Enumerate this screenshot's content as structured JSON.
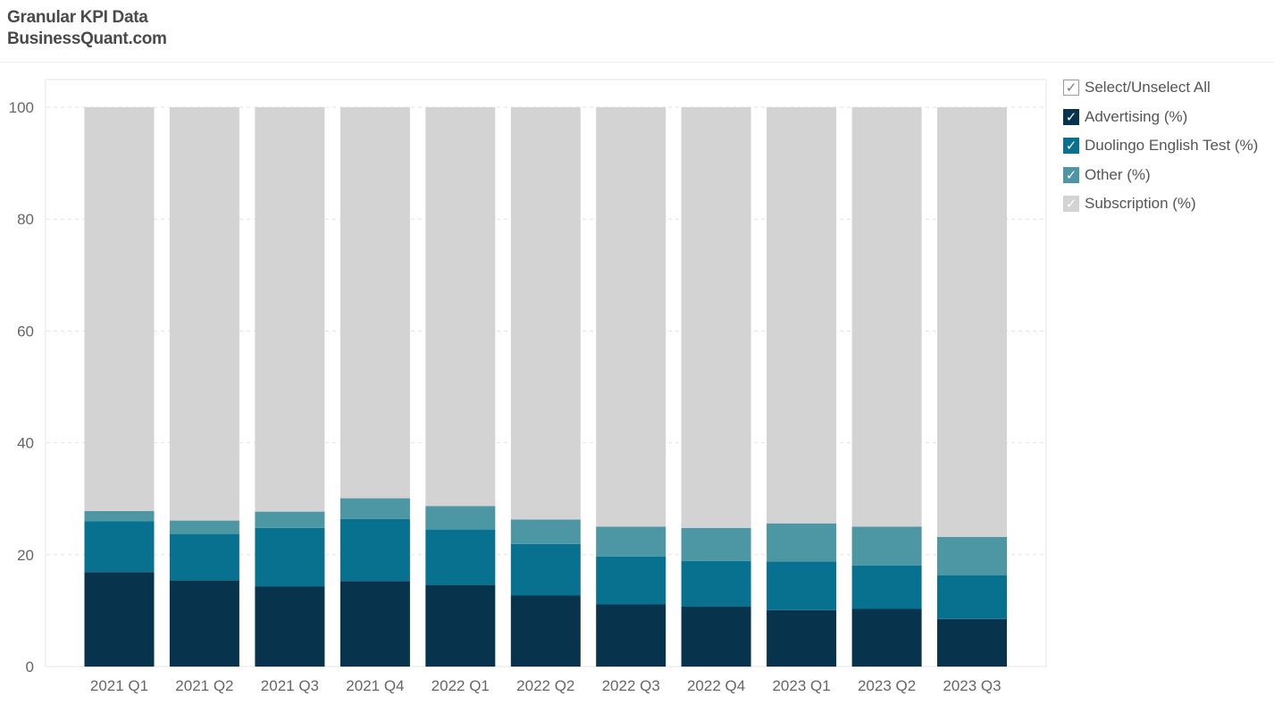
{
  "header": {
    "title": "Granular KPI Data",
    "subtitle": "BusinessQuant.com"
  },
  "legend": {
    "select_all": {
      "label": "Select/Unselect All",
      "check": "✓"
    },
    "items": [
      {
        "label": "Advertising (%)",
        "color": "#08334d",
        "check": "✓"
      },
      {
        "label": "Duolingo English Test (%)",
        "color": "#08718f",
        "check": "✓"
      },
      {
        "label": "Other (%)",
        "color": "#4d96a3",
        "check": "✓"
      },
      {
        "label": "Subscription (%)",
        "color": "#d3d3d3",
        "check": "✓"
      }
    ]
  },
  "chart_data": {
    "type": "bar",
    "stacked": true,
    "categories": [
      "2021 Q1",
      "2021 Q2",
      "2021 Q3",
      "2021 Q4",
      "2022 Q1",
      "2022 Q2",
      "2022 Q3",
      "2022 Q4",
      "2023 Q1",
      "2023 Q2",
      "2023 Q3"
    ],
    "series": [
      {
        "name": "Advertising (%)",
        "color": "#08334d",
        "values": [
          16.9,
          15.4,
          14.3,
          15.3,
          14.6,
          12.7,
          11.1,
          10.7,
          10.1,
          10.3,
          8.5
        ]
      },
      {
        "name": "Duolingo English Test (%)",
        "color": "#08718f",
        "values": [
          9.1,
          8.3,
          10.5,
          11.1,
          9.9,
          9.2,
          8.6,
          8.2,
          8.7,
          7.8,
          7.8
        ]
      },
      {
        "name": "Other (%)",
        "color": "#4d96a3",
        "values": [
          1.8,
          2.4,
          2.9,
          3.7,
          4.2,
          4.4,
          5.3,
          5.9,
          6.8,
          6.9,
          6.9
        ]
      },
      {
        "name": "Subscription (%)",
        "color": "#d3d3d3",
        "values": [
          72.2,
          73.9,
          72.3,
          69.9,
          71.3,
          73.7,
          75.0,
          75.2,
          74.4,
          75.0,
          76.8
        ]
      }
    ],
    "yticks": [
      0,
      20,
      40,
      60,
      80,
      100
    ],
    "ylim": [
      0,
      100
    ],
    "grid": true,
    "legend_position": "right"
  }
}
